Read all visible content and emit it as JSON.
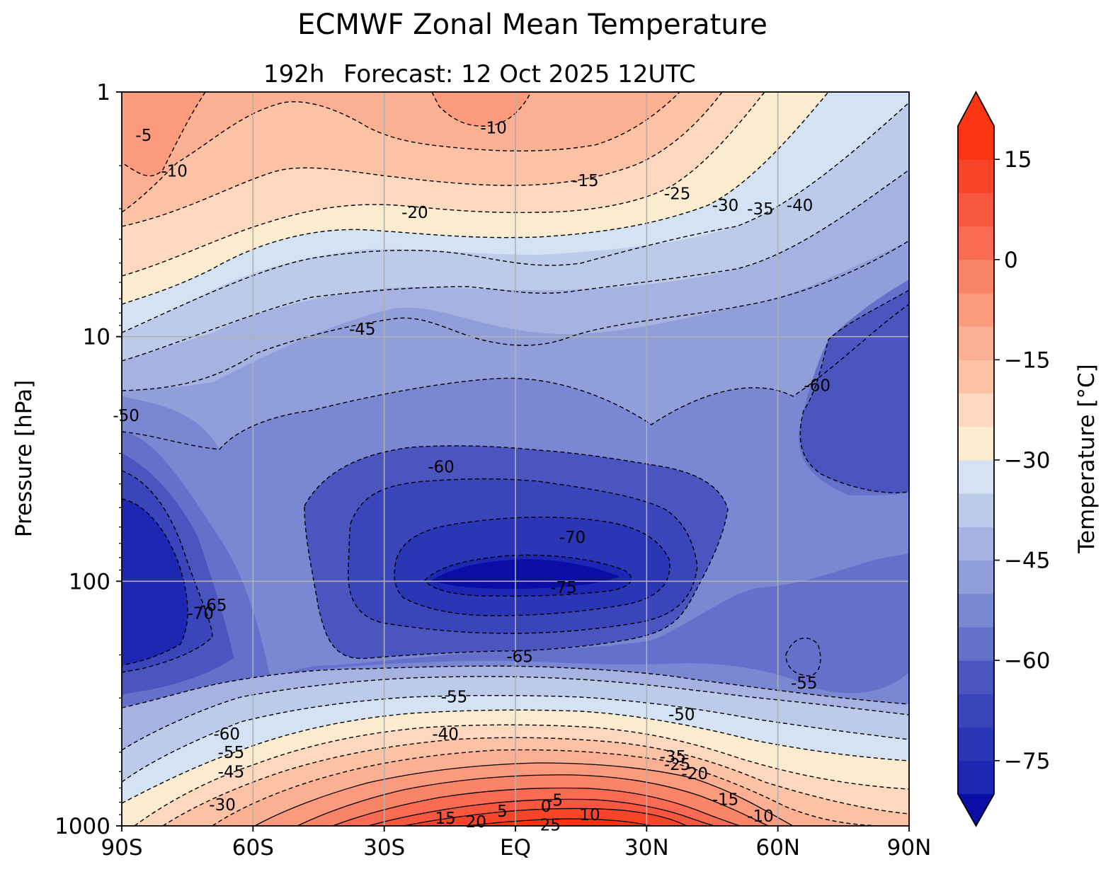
{
  "chart_data": {
    "type": "filled-contour",
    "title": "ECMWF Zonal Mean Temperature",
    "subtitle_lead": "192h",
    "subtitle": "Forecast:  12 Oct 2025  12UTC",
    "xlabel": "",
    "ylabel": "Pressure [hPa]",
    "x_ticks": [
      "90S",
      "60S",
      "30S",
      "EQ",
      "30N",
      "60N",
      "90N"
    ],
    "x_tick_values": [
      -90,
      -60,
      -30,
      0,
      30,
      60,
      90
    ],
    "y_ticks": [
      "1",
      "10",
      "100",
      "1000"
    ],
    "y_tick_values": [
      1,
      10,
      100,
      1000
    ],
    "y_scale": "log",
    "xlim": [
      -90,
      90
    ],
    "ylim": [
      1000,
      1
    ],
    "grid": true,
    "colorbar": {
      "label": "Temperature [°C]",
      "levels": [
        -80,
        -75,
        -70,
        -65,
        -60,
        -55,
        -50,
        -45,
        -40,
        -35,
        -30,
        -25,
        -20,
        -15,
        -10,
        -5,
        0,
        5,
        10,
        15,
        20
      ],
      "tick_labels": [
        "15",
        "0",
        "−15",
        "−30",
        "−45",
        "−60",
        "−75"
      ],
      "tick_values": [
        15,
        0,
        -15,
        -30,
        -45,
        -60,
        -75
      ],
      "extend": "both",
      "colors": [
        "#0b0ea6",
        "#1d27b3",
        "#2b36b6",
        "#3a45bb",
        "#4b55c0",
        "#6570cb",
        "#7a88d4",
        "#909ed9",
        "#a6b3e2",
        "#bdcbeb",
        "#d4e2f4",
        "#fbecd0",
        "#fcd8bf",
        "#fcc2a6",
        "#fcb093",
        "#fb9a7c",
        "#fa8566",
        "#f96b52",
        "#f7573f",
        "#f64529",
        "#fb3412"
      ]
    },
    "contour_labels": [
      {
        "text": "-5",
        "lat": -85,
        "p": 1.5
      },
      {
        "text": "-10",
        "lat": -78,
        "p": 2.1
      },
      {
        "text": "-10",
        "lat": -5,
        "p": 1.4
      },
      {
        "text": "-15",
        "lat": 16,
        "p": 2.3
      },
      {
        "text": "-20",
        "lat": -23,
        "p": 3.1
      },
      {
        "text": "-25",
        "lat": 37,
        "p": 2.6
      },
      {
        "text": "-30",
        "lat": 48,
        "p": 2.9
      },
      {
        "text": "-35",
        "lat": 56,
        "p": 3.0
      },
      {
        "text": "-40",
        "lat": 65,
        "p": 2.9
      },
      {
        "text": "-45",
        "lat": -35,
        "p": 9.3
      },
      {
        "text": "-50",
        "lat": -89,
        "p": 21
      },
      {
        "text": "-60",
        "lat": -17,
        "p": 34
      },
      {
        "text": "-60",
        "lat": 69,
        "p": 15.8
      },
      {
        "text": "-70",
        "lat": 13,
        "p": 66
      },
      {
        "text": "-75",
        "lat": 11,
        "p": 106
      },
      {
        "text": "-65",
        "lat": -69,
        "p": 125
      },
      {
        "text": "-70",
        "lat": -72,
        "p": 135
      },
      {
        "text": "-65",
        "lat": 1,
        "p": 203
      },
      {
        "text": "-55",
        "lat": -14,
        "p": 297
      },
      {
        "text": "-40",
        "lat": -16,
        "p": 421
      },
      {
        "text": "-60",
        "lat": -66,
        "p": 420
      },
      {
        "text": "-55",
        "lat": -65,
        "p": 500
      },
      {
        "text": "-45",
        "lat": -65,
        "p": 600
      },
      {
        "text": "-30",
        "lat": -67,
        "p": 820
      },
      {
        "text": "-50",
        "lat": 38,
        "p": 350
      },
      {
        "text": "-35",
        "lat": 36,
        "p": 520
      },
      {
        "text": "-25",
        "lat": 37,
        "p": 560
      },
      {
        "text": "-20",
        "lat": 41,
        "p": 610
      },
      {
        "text": "-55",
        "lat": 66,
        "p": 260
      },
      {
        "text": "-15",
        "lat": 48,
        "p": 780
      },
      {
        "text": "-10",
        "lat": 56,
        "p": 910
      },
      {
        "text": "-5",
        "lat": 9,
        "p": 785
      },
      {
        "text": "0",
        "lat": 7,
        "p": 830
      },
      {
        "text": "5",
        "lat": -3,
        "p": 870
      },
      {
        "text": "10",
        "lat": 17,
        "p": 900
      },
      {
        "text": "15",
        "lat": -16,
        "p": 930
      },
      {
        "text": "20",
        "lat": -9,
        "p": 960
      },
      {
        "text": "25",
        "lat": 8,
        "p": 990
      }
    ]
  }
}
